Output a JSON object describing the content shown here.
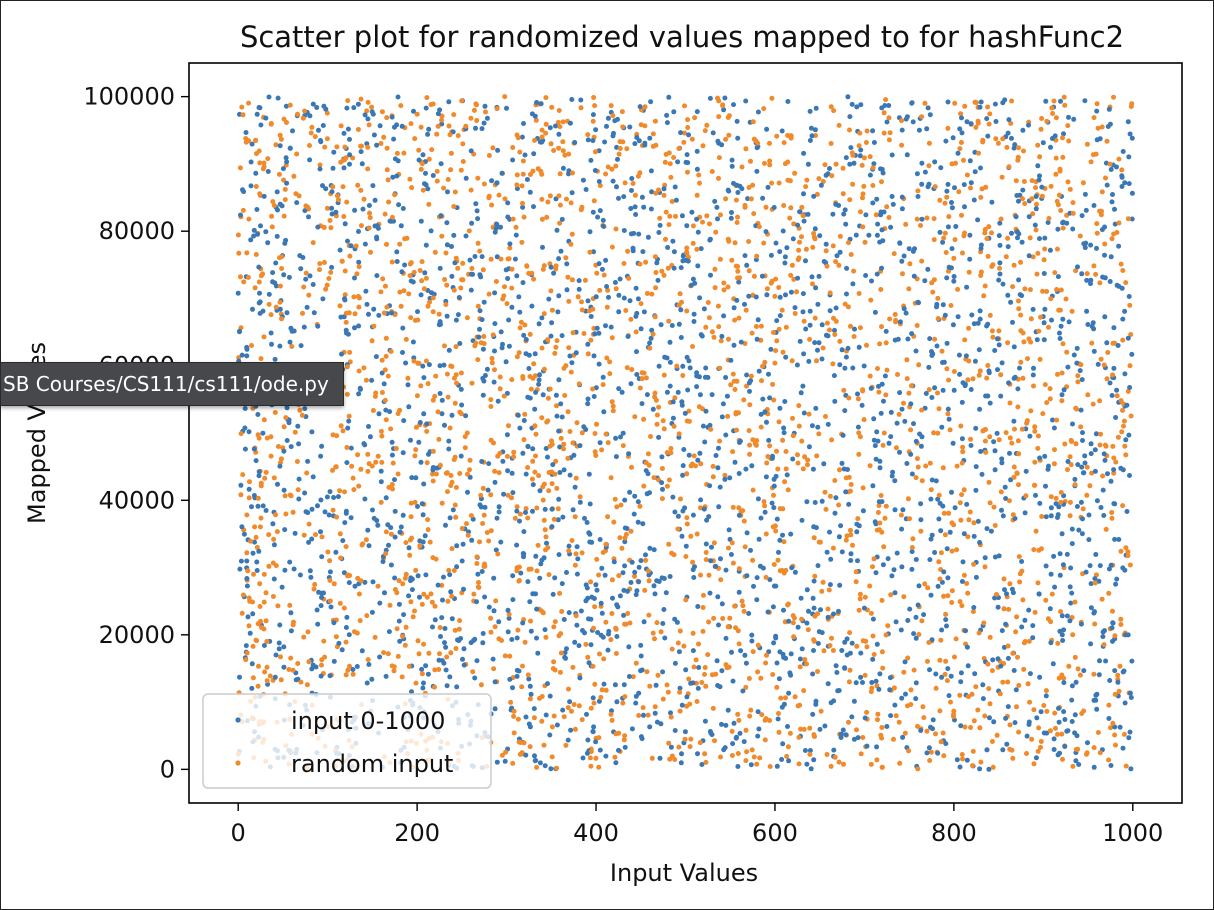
{
  "tooltip": {
    "text": "SB Courses/CS111/cs111/ode.py"
  },
  "colors": {
    "series_blue": "#3a78b5",
    "series_orange": "#f08a2b"
  },
  "chart_data": {
    "type": "scatter",
    "title": "Scatter plot for randomized values mapped to for hashFunc2",
    "xlabel": "Input Values",
    "ylabel": "Mapped Values",
    "xlim": [
      -55,
      1055
    ],
    "ylim": [
      -5000,
      105000
    ],
    "xticks": [
      0,
      200,
      400,
      600,
      800,
      1000
    ],
    "yticks": [
      0,
      20000,
      40000,
      60000,
      80000,
      100000
    ],
    "grid": false,
    "legend": "lower-left",
    "series": [
      {
        "name": "input 0-1000",
        "points_description_range": {
          "x": [
            0,
            1000
          ],
          "y": [
            0,
            100000
          ]
        },
        "count": 5000
      },
      {
        "name": "random input",
        "points_description_range": {
          "x": [
            0,
            1000
          ],
          "y": [
            0,
            100000
          ]
        },
        "count": 5000
      }
    ]
  }
}
